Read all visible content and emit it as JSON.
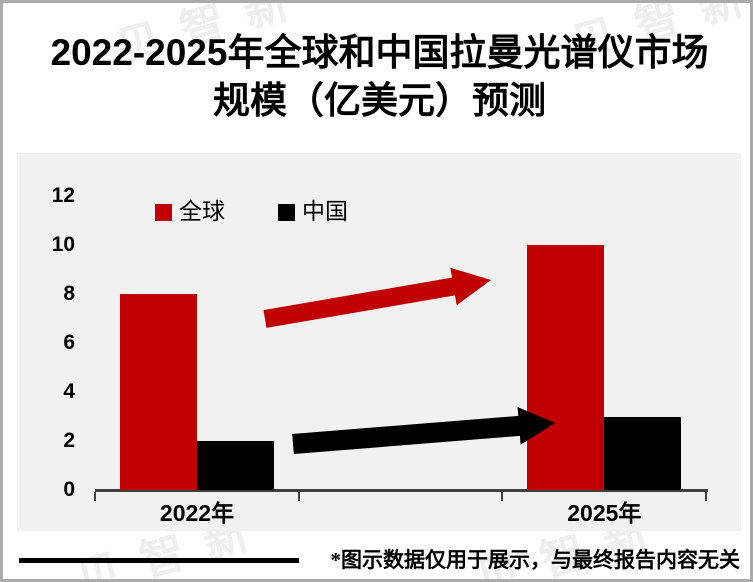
{
  "page": {
    "title_line1_prefix": "2022-2025",
    "title_line1_rest": "年全球和中国拉曼光谱仪市场",
    "title_line2": "规模（亿美元）预测",
    "footnote": "*图示数据仅用于展示，与最终报告内容无关",
    "watermark_text": "贝智新"
  },
  "chart_data": {
    "type": "bar",
    "title": "2022-2025年全球和中国拉曼光谱仪市场规模（亿美元）预测",
    "unit_label": "亿美元",
    "categories": [
      "2022年",
      "2025年"
    ],
    "series": [
      {
        "name": "全球",
        "color": "#C00000",
        "values": [
          8,
          10
        ]
      },
      {
        "name": "中国",
        "color": "#000000",
        "values": [
          2,
          3
        ]
      }
    ],
    "ylim": [
      0,
      12
    ],
    "yticks": [
      0,
      2,
      4,
      6,
      8,
      10,
      12
    ],
    "xlabel": "",
    "ylabel": "",
    "grid": false,
    "legend_position": "top-inside",
    "plot_background": "#F1F1F1",
    "slot_count": 3,
    "slot_indices": [
      0,
      2
    ],
    "annotations": [
      {
        "kind": "growth-arrow",
        "series": "全球",
        "color": "#C00000",
        "from_category": "2022年",
        "to_category": "2025年"
      },
      {
        "kind": "growth-arrow",
        "series": "中国",
        "color": "#000000",
        "from_category": "2022年",
        "to_category": "2025年"
      }
    ]
  }
}
